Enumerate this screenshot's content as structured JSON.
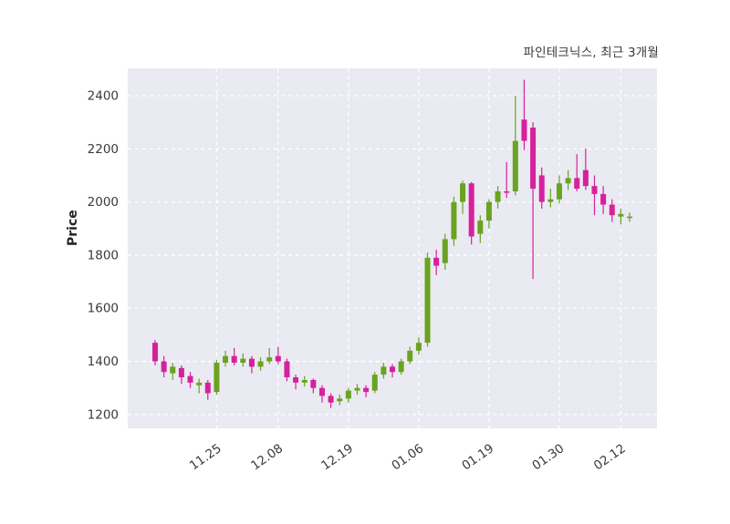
{
  "title": "파인테크닉스, 최근 3개월",
  "chart_data": {
    "type": "candlestick",
    "title": "파인테크닉스, 최근 3개월",
    "ylabel": "Price",
    "yticks": [
      1200,
      1400,
      1600,
      1800,
      2000,
      2200,
      2400
    ],
    "ylim": [
      1148,
      2503
    ],
    "grid": "on",
    "xticks": [
      {
        "index": 7,
        "label": "11.25"
      },
      {
        "index": 14,
        "label": "12.08"
      },
      {
        "index": 22,
        "label": "12.19"
      },
      {
        "index": 30,
        "label": "01.06"
      },
      {
        "index": 38,
        "label": "01.19"
      },
      {
        "index": 46,
        "label": "01.30"
      },
      {
        "index": 53,
        "label": "02.12"
      }
    ],
    "colors": {
      "up": "#69a321",
      "down": "#d6219c",
      "plot_bg": "#eaeaf2",
      "grid": "#ffffff",
      "text": "#3a3a3a"
    },
    "ohlc_format": [
      "open",
      "high",
      "low",
      "close"
    ],
    "candles": [
      [
        1470,
        1480,
        1385,
        1400
      ],
      [
        1400,
        1420,
        1340,
        1360
      ],
      [
        1355,
        1395,
        1330,
        1380
      ],
      [
        1375,
        1385,
        1315,
        1340
      ],
      [
        1345,
        1360,
        1300,
        1320
      ],
      [
        1310,
        1335,
        1280,
        1320
      ],
      [
        1320,
        1330,
        1255,
        1280
      ],
      [
        1285,
        1405,
        1275,
        1395
      ],
      [
        1395,
        1440,
        1380,
        1420
      ],
      [
        1420,
        1450,
        1385,
        1395
      ],
      [
        1395,
        1430,
        1380,
        1410
      ],
      [
        1410,
        1420,
        1355,
        1380
      ],
      [
        1380,
        1415,
        1365,
        1400
      ],
      [
        1400,
        1450,
        1390,
        1415
      ],
      [
        1420,
        1455,
        1390,
        1400
      ],
      [
        1400,
        1410,
        1325,
        1340
      ],
      [
        1340,
        1350,
        1295,
        1320
      ],
      [
        1320,
        1345,
        1305,
        1330
      ],
      [
        1330,
        1335,
        1280,
        1300
      ],
      [
        1300,
        1310,
        1245,
        1270
      ],
      [
        1270,
        1280,
        1225,
        1245
      ],
      [
        1250,
        1275,
        1235,
        1260
      ],
      [
        1260,
        1300,
        1245,
        1290
      ],
      [
        1290,
        1315,
        1275,
        1300
      ],
      [
        1300,
        1310,
        1265,
        1285
      ],
      [
        1290,
        1360,
        1280,
        1350
      ],
      [
        1350,
        1395,
        1335,
        1380
      ],
      [
        1380,
        1390,
        1340,
        1360
      ],
      [
        1360,
        1410,
        1350,
        1400
      ],
      [
        1400,
        1455,
        1390,
        1440
      ],
      [
        1440,
        1490,
        1425,
        1470
      ],
      [
        1470,
        1810,
        1455,
        1790
      ],
      [
        1790,
        1820,
        1725,
        1760
      ],
      [
        1770,
        1880,
        1745,
        1860
      ],
      [
        1860,
        2020,
        1835,
        2000
      ],
      [
        2000,
        2080,
        1955,
        2070
      ],
      [
        2070,
        2075,
        1840,
        1870
      ],
      [
        1880,
        1950,
        1845,
        1930
      ],
      [
        1930,
        2010,
        1900,
        2000
      ],
      [
        2000,
        2060,
        1975,
        2040
      ],
      [
        2040,
        2150,
        2015,
        2035
      ],
      [
        2040,
        2400,
        2025,
        2230
      ],
      [
        2310,
        2460,
        2195,
        2230
      ],
      [
        2280,
        2300,
        1710,
        2050
      ],
      [
        2100,
        2130,
        1975,
        2000
      ],
      [
        2000,
        2050,
        1980,
        2010
      ],
      [
        2010,
        2100,
        1995,
        2070
      ],
      [
        2070,
        2120,
        2045,
        2090
      ],
      [
        2090,
        2180,
        2040,
        2050
      ],
      [
        2120,
        2200,
        2045,
        2060
      ],
      [
        2060,
        2100,
        1950,
        2030
      ],
      [
        2030,
        2060,
        1955,
        1990
      ],
      [
        1990,
        2010,
        1925,
        1950
      ],
      [
        1945,
        1975,
        1915,
        1955
      ],
      [
        1940,
        1960,
        1925,
        1945
      ]
    ]
  }
}
